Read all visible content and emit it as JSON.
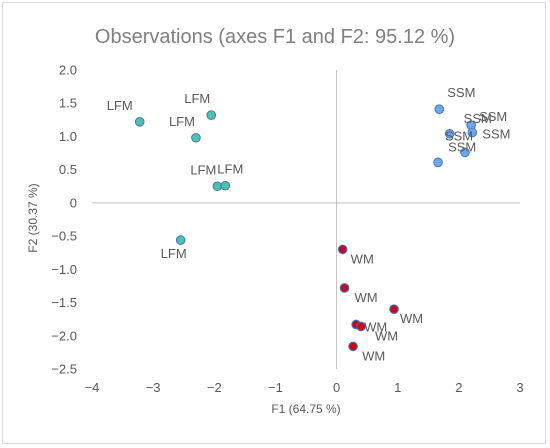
{
  "chart_data": {
    "type": "scatter",
    "title": "Observations (axes F1 and F2: 95.12 %)",
    "xlabel": "F1 (64.75 %)",
    "ylabel": "F2 (30.37 %)",
    "xlim": [
      -4,
      3
    ],
    "ylim": [
      -2.5,
      2.0
    ],
    "x_ticks": [
      -4,
      -3,
      -2,
      -1,
      0,
      1,
      2,
      3
    ],
    "y_ticks": [
      2.0,
      1.5,
      1.0,
      0.5,
      0,
      -0.5,
      -1.0,
      -1.5,
      -2.0,
      -2.5
    ],
    "x_tick_labels": [
      "−4",
      "−3",
      "−2",
      "−1",
      "0",
      "1",
      "2",
      "3"
    ],
    "y_tick_labels": [
      "2.0",
      "1.5",
      "1.0",
      "0.5",
      "0",
      "−0.5",
      "−1.0",
      "−1.5",
      "−2.0",
      "−2.5"
    ],
    "grid": "none",
    "legend": "none",
    "series": [
      {
        "name": "LFM",
        "color": "#4dc3a8",
        "points": [
          {
            "x": -3.22,
            "y": 1.22,
            "label": "LFM"
          },
          {
            "x": -2.05,
            "y": 1.32,
            "label": "LFM"
          },
          {
            "x": -2.3,
            "y": 0.98,
            "label": "LFM"
          },
          {
            "x": -1.95,
            "y": 0.25,
            "label": "LFM"
          },
          {
            "x": -1.82,
            "y": 0.26,
            "label": "LFM"
          },
          {
            "x": -2.55,
            "y": -0.56,
            "label": "LFM"
          }
        ]
      },
      {
        "name": "SSM",
        "color": "#6fa8e6",
        "points": [
          {
            "x": 1.68,
            "y": 1.41,
            "label": "SSM"
          },
          {
            "x": 2.2,
            "y": 1.17,
            "label": "SSM"
          },
          {
            "x": 2.22,
            "y": 1.06,
            "label": "SSM"
          },
          {
            "x": 1.85,
            "y": 1.04,
            "label": "SSM"
          },
          {
            "x": 2.1,
            "y": 0.76,
            "label": "SSM"
          },
          {
            "x": 1.66,
            "y": 0.61,
            "label": "SSM"
          }
        ]
      },
      {
        "name": "WM",
        "color": "#c0101d",
        "points": [
          {
            "x": 0.1,
            "y": -0.7,
            "label": "WM"
          },
          {
            "x": 0.13,
            "y": -1.28,
            "label": "WM"
          },
          {
            "x": 0.94,
            "y": -1.6,
            "label": "WM"
          },
          {
            "x": 0.32,
            "y": -1.83,
            "label": "WM"
          },
          {
            "x": 0.4,
            "y": -1.86,
            "label": "WM"
          },
          {
            "x": 0.27,
            "y": -2.16,
            "label": "WM"
          }
        ]
      }
    ]
  }
}
